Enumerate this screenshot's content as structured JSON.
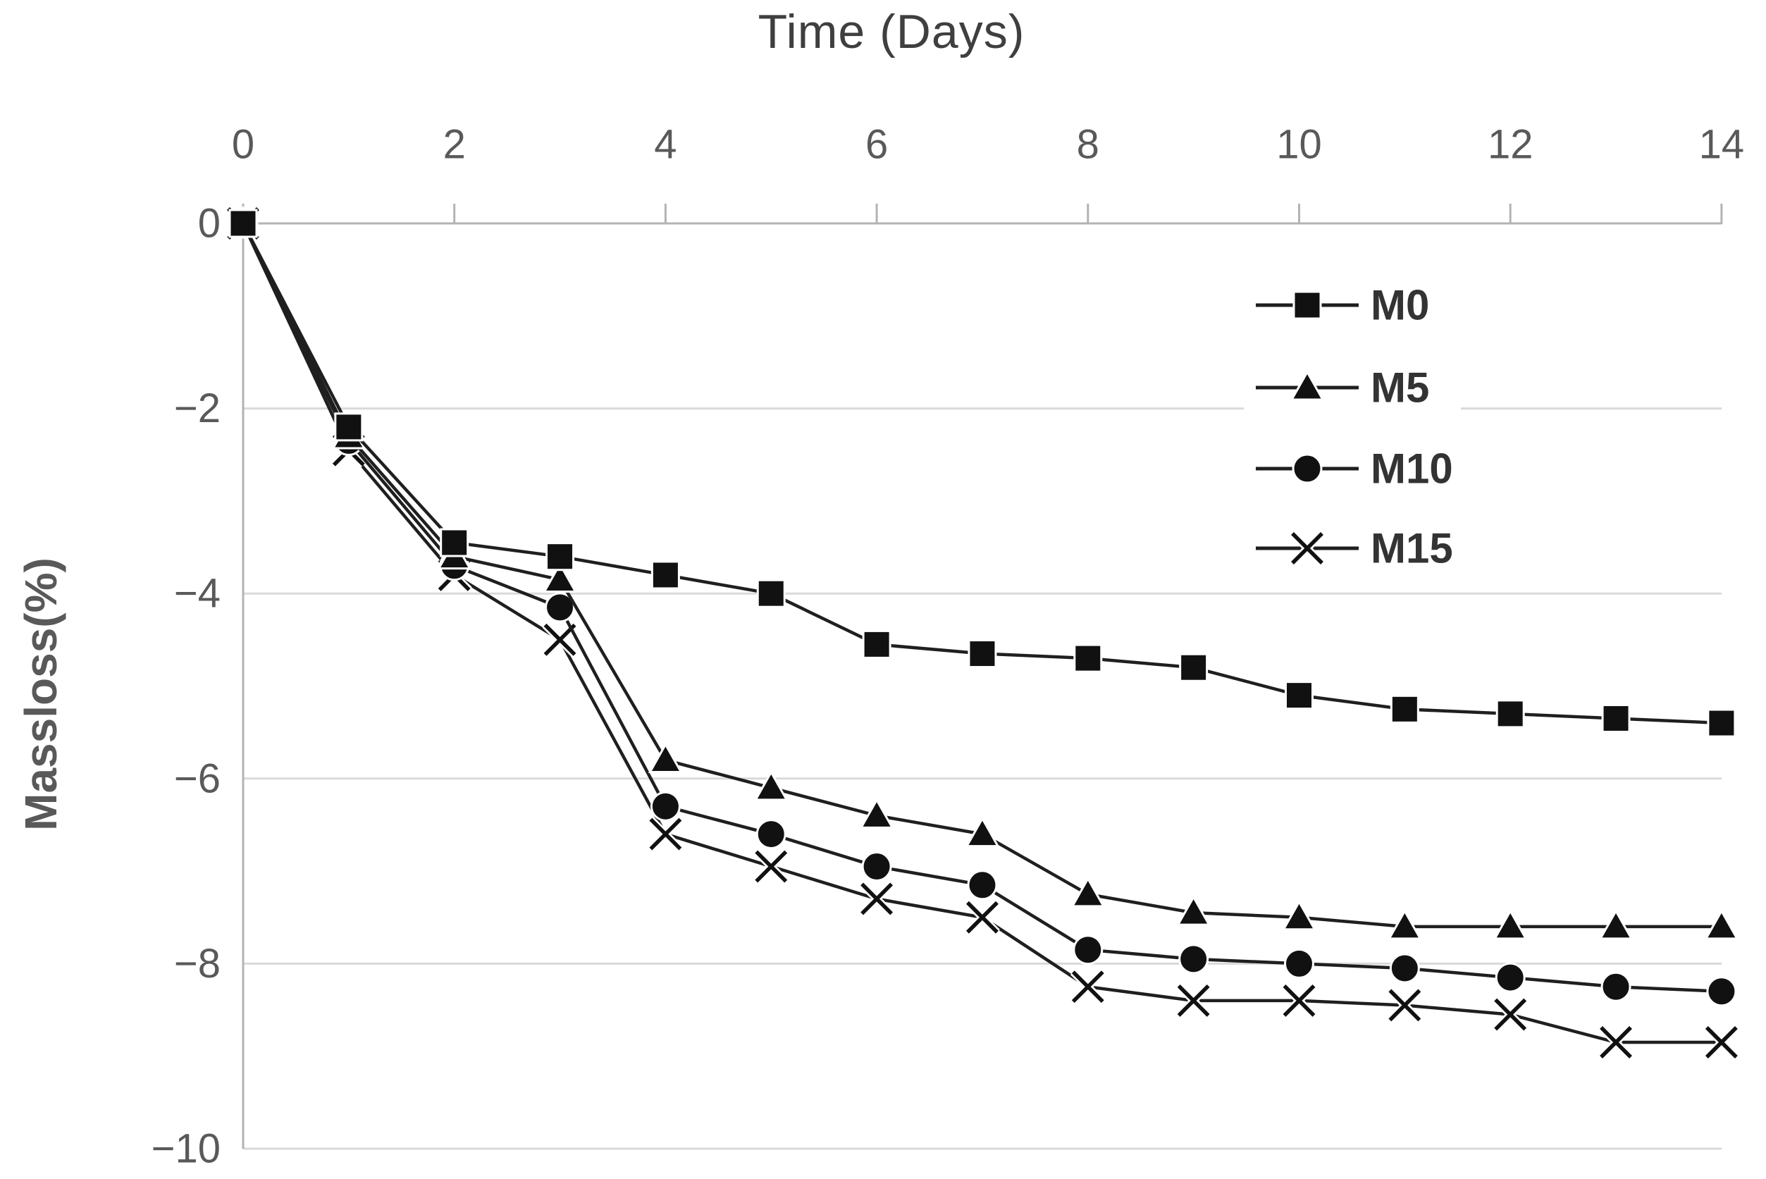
{
  "chart_data": {
    "type": "line",
    "title": "Time (Days)",
    "xlabel": "Time (Days)",
    "ylabel": "Massloss(%)",
    "x": [
      0,
      1,
      2,
      3,
      4,
      5,
      6,
      7,
      8,
      9,
      10,
      11,
      12,
      13,
      14
    ],
    "x_tick_values": [
      0,
      2,
      4,
      6,
      8,
      10,
      12,
      14
    ],
    "x_tick_labels": [
      "0",
      "2",
      "4",
      "6",
      "8",
      "10",
      "12",
      "14"
    ],
    "y_tick_values": [
      0,
      -2,
      -4,
      -6,
      -8,
      -10
    ],
    "y_tick_labels": [
      "0",
      "−2",
      "−4",
      "−6",
      "−8",
      "−10"
    ],
    "xlim": [
      0,
      14
    ],
    "ylim": [
      -10,
      0
    ],
    "grid": "horizontal-major",
    "legend_position": "inside-upper-right",
    "series": [
      {
        "name": "M0",
        "marker": "square",
        "values": [
          0,
          -2.2,
          -3.45,
          -3.6,
          -3.8,
          -4.0,
          -4.55,
          -4.65,
          -4.7,
          -4.8,
          -5.1,
          -5.25,
          -5.3,
          -5.35,
          -5.4
        ]
      },
      {
        "name": "M5",
        "marker": "triangle",
        "values": [
          0,
          -2.3,
          -3.6,
          -3.85,
          -5.8,
          -6.1,
          -6.4,
          -6.6,
          -7.25,
          -7.45,
          -7.5,
          -7.6,
          -7.6,
          -7.6,
          -7.6
        ]
      },
      {
        "name": "M10",
        "marker": "circle",
        "values": [
          0,
          -2.35,
          -3.7,
          -4.15,
          -6.3,
          -6.6,
          -6.95,
          -7.15,
          -7.85,
          -7.95,
          -8.0,
          -8.05,
          -8.15,
          -8.25,
          -8.3
        ]
      },
      {
        "name": "M15",
        "marker": "x",
        "values": [
          0,
          -2.45,
          -3.8,
          -4.5,
          -6.6,
          -6.95,
          -7.3,
          -7.5,
          -8.25,
          -8.4,
          -8.4,
          -8.45,
          -8.55,
          -8.85,
          -8.85
        ]
      }
    ],
    "colors": {
      "series_line": "#1f1f1f",
      "marker_fill": "#111111",
      "marker_halo": "#ffffff",
      "gridline": "#d9d9d9",
      "axis_line": "#b3b3b3",
      "tick_label": "#595959",
      "title": "#3f3f3f",
      "legend_label": "#333333",
      "background": "#ffffff"
    }
  }
}
